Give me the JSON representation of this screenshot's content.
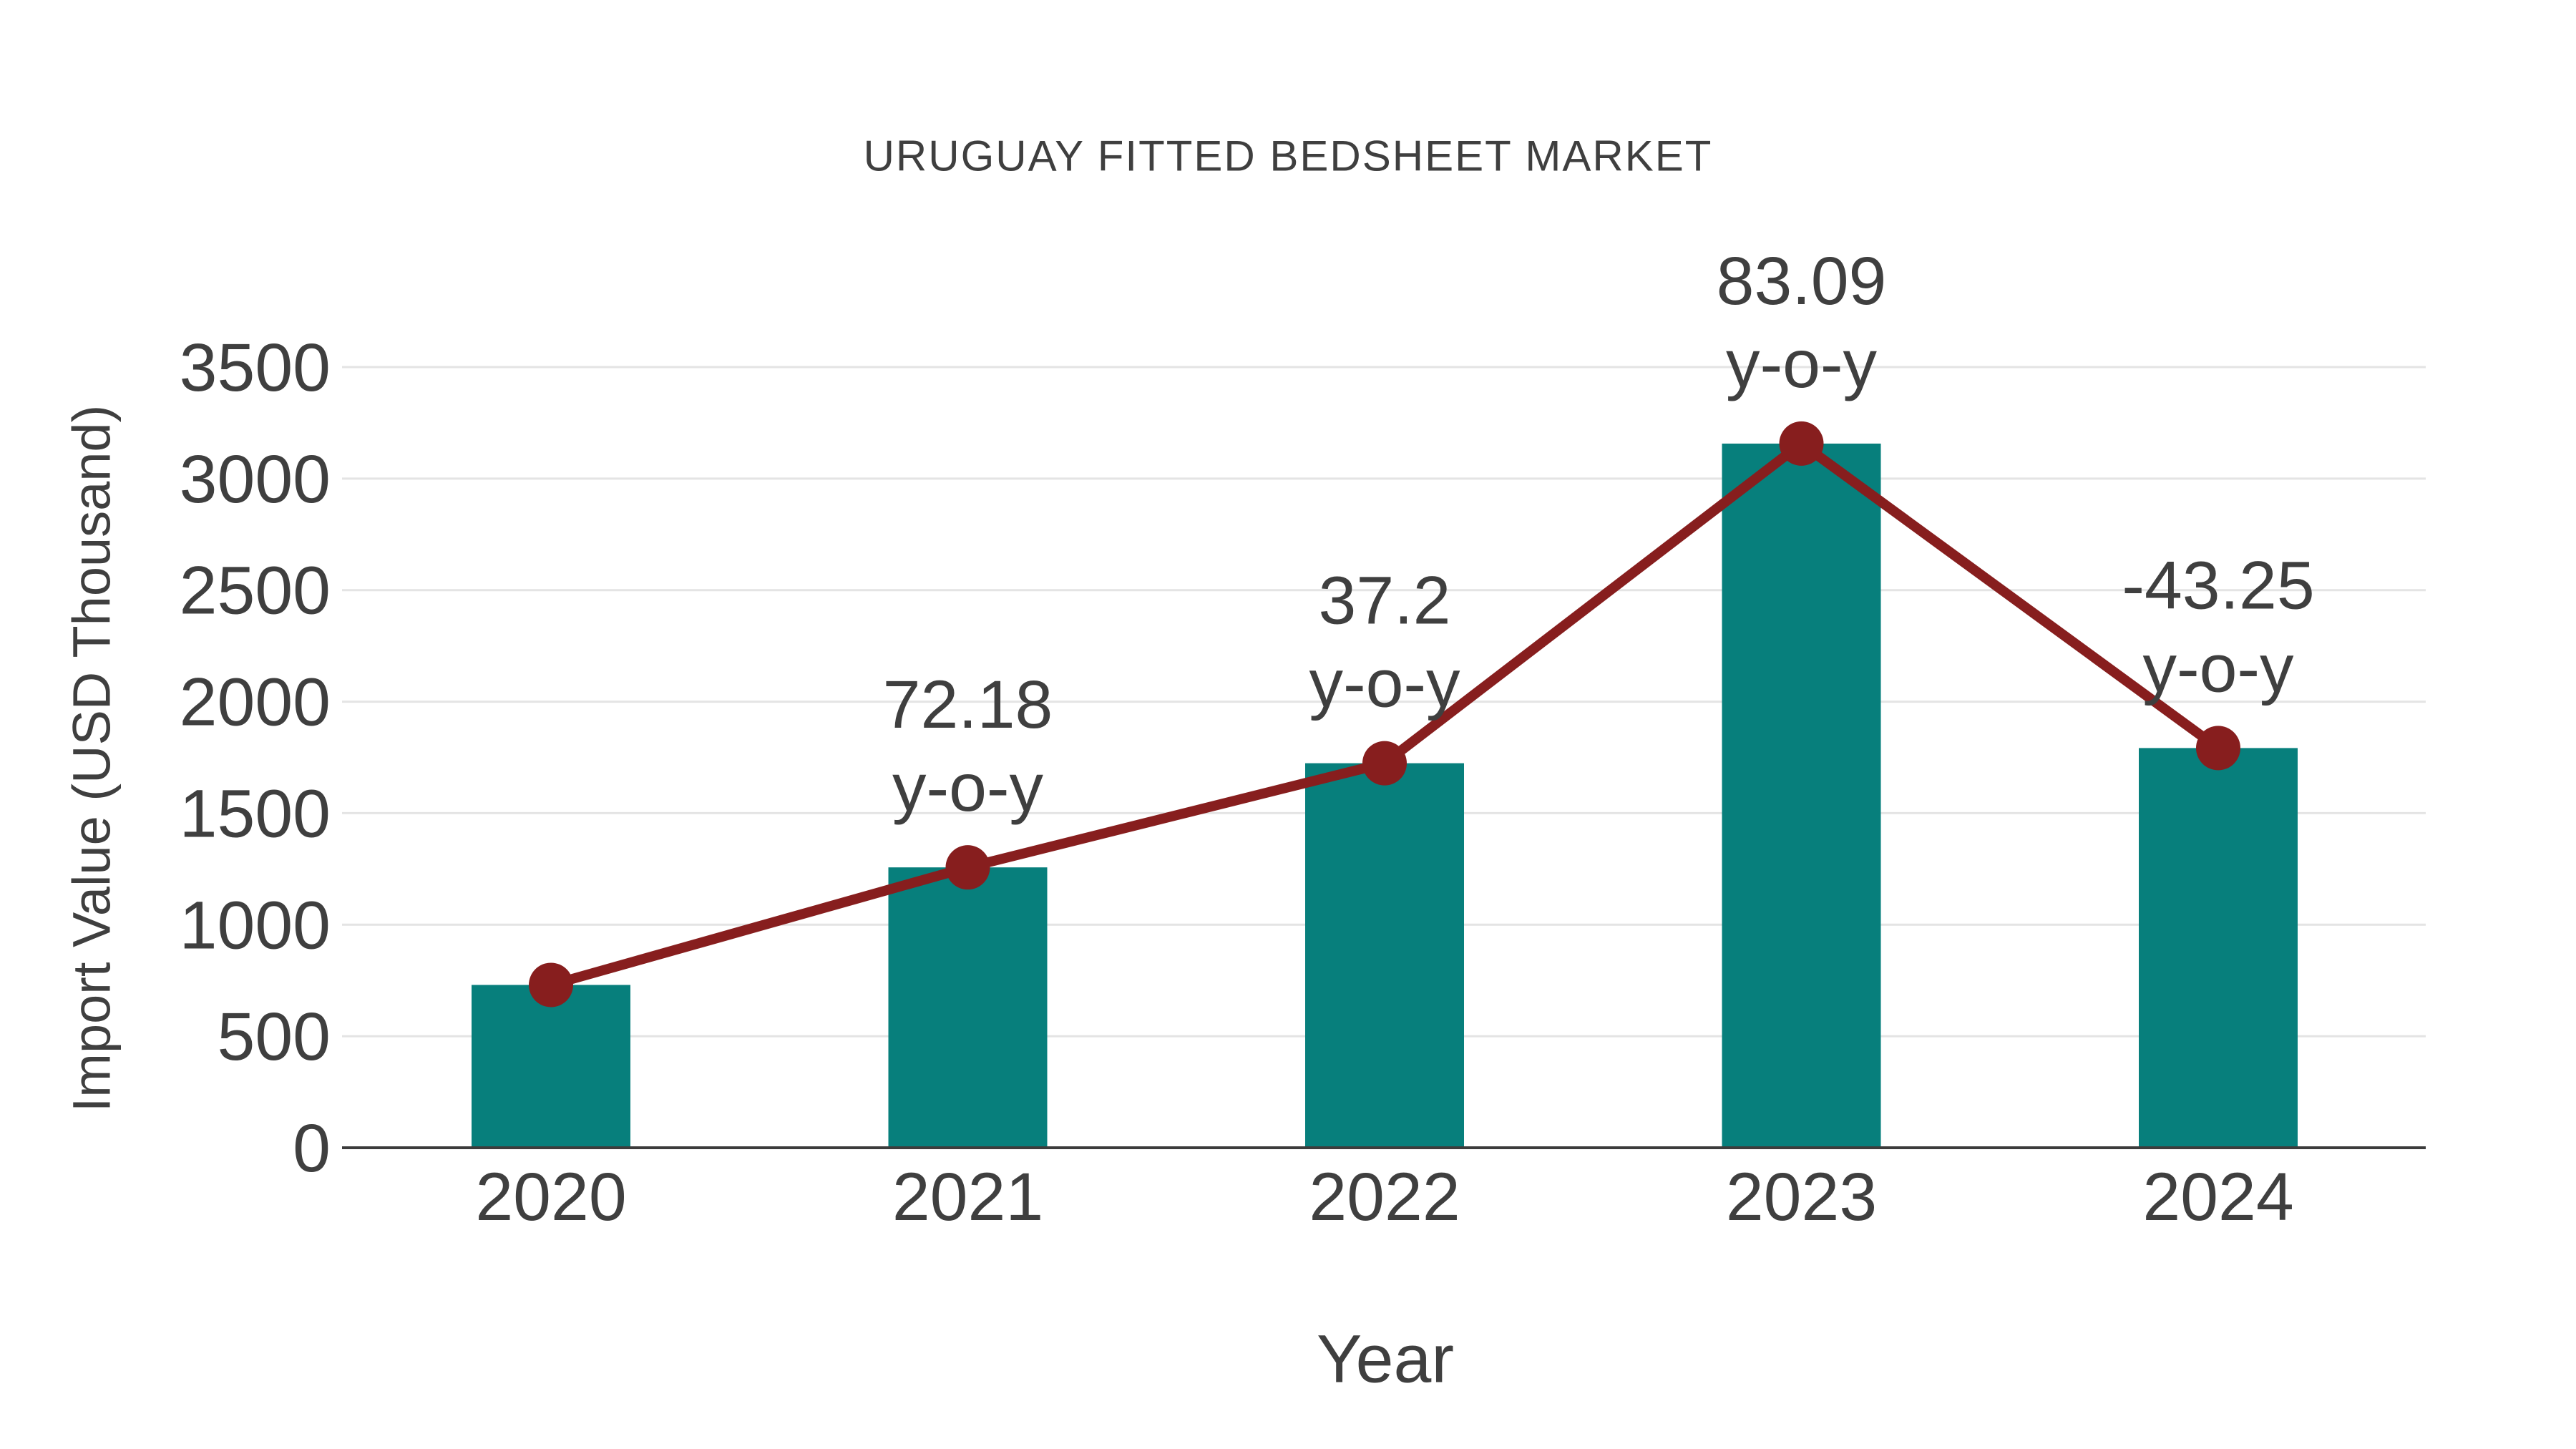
{
  "chart_data": {
    "type": "bar",
    "title": "URUGUAY FITTED BEDSHEET MARKET",
    "xlabel": "Year",
    "ylabel": "Import Value (USD Thousand)",
    "categories": [
      "2020",
      "2021",
      "2022",
      "2023",
      "2024"
    ],
    "values": [
      730,
      1257,
      1724,
      3157,
      1792
    ],
    "line_overlay": {
      "description": "line with circular markers drawn through the top of each bar",
      "values": [
        730,
        1257,
        1724,
        3157,
        1792
      ],
      "color": "#871E1E",
      "marker": "circle"
    },
    "point_labels": {
      "values": [
        null,
        "72.18",
        "37.2",
        "83.09",
        "-43.25"
      ],
      "suffix": "y-o-y"
    },
    "yticks": [
      0,
      500,
      1000,
      1500,
      2000,
      2500,
      3000,
      3500
    ],
    "ylim": [
      0,
      3500
    ],
    "grid": "horizontal",
    "legend_position": "none",
    "bar_color": "#077F7C",
    "colors": {
      "text": "#3F3F3F",
      "grid": "#E4E4E4",
      "axis": "#3C3C3C",
      "background": "#FFFFFF"
    }
  }
}
